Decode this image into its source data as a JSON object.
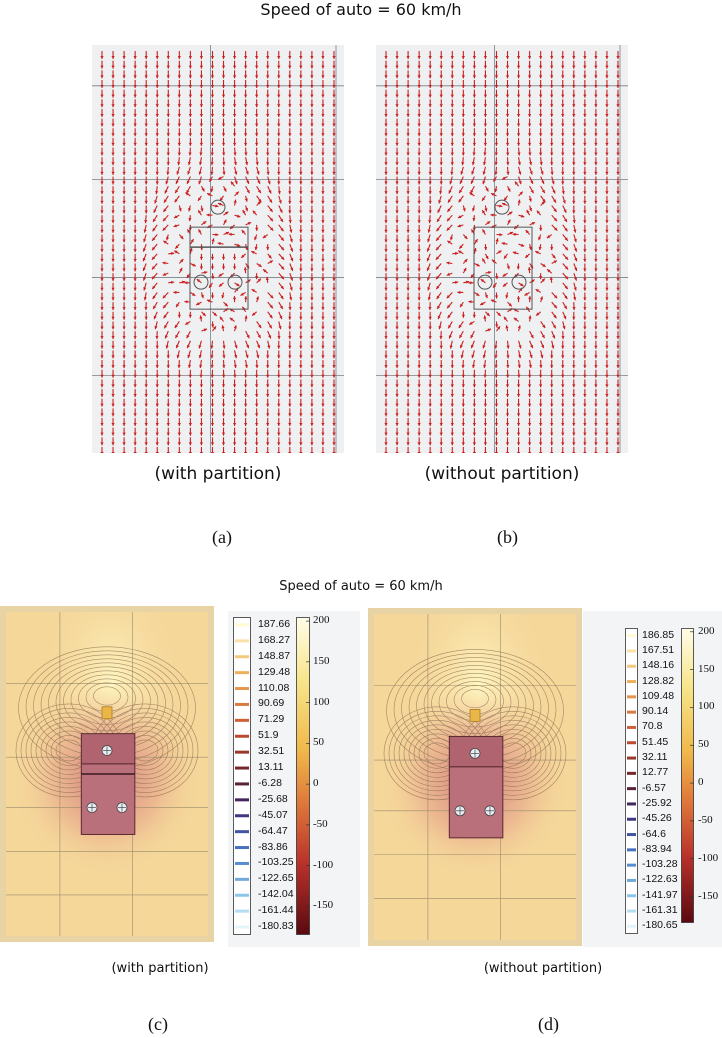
{
  "top": {
    "title": "Speed of auto = 60 km/h",
    "panel_a": {
      "caption": "(with partition)",
      "letter": "(a)"
    },
    "panel_b": {
      "caption": "(without partition)",
      "letter": "(b)"
    }
  },
  "bottom": {
    "title": "Speed of auto = 60 km/h",
    "panel_c": {
      "caption": "(with partition)",
      "letter": "(c)",
      "contour_levels": [
        "187.66",
        "168.27",
        "148.87",
        "129.48",
        "110.08",
        "90.69",
        "71.29",
        "51.9",
        "32.51",
        "13.11",
        "-6.28",
        "-25.68",
        "-45.07",
        "-64.47",
        "-83.86",
        "-103.25",
        "-122.65",
        "-142.04",
        "-161.44",
        "-180.83"
      ],
      "scale_ticks": [
        "200",
        "150",
        "100",
        "50",
        "0",
        "-50",
        "-100",
        "-150"
      ]
    },
    "panel_d": {
      "caption": "(without partition)",
      "letter": "(d)",
      "contour_levels": [
        "186.85",
        "167.51",
        "148.16",
        "128.82",
        "109.48",
        "90.14",
        "70.8",
        "51.45",
        "32.11",
        "12.77",
        "-6.57",
        "-25.92",
        "-45.26",
        "-64.6",
        "-83.94",
        "-103.28",
        "-122.63",
        "-141.97",
        "-161.31",
        "-180.65"
      ],
      "scale_ticks": [
        "200",
        "150",
        "100",
        "50",
        "0",
        "-50",
        "-100",
        "-150"
      ]
    }
  },
  "colors": {
    "arrow": "#cc1f1f",
    "plot_bg": "#eef0f2",
    "field_base": "#f5d79a",
    "field_hot": "#d98a7a"
  }
}
